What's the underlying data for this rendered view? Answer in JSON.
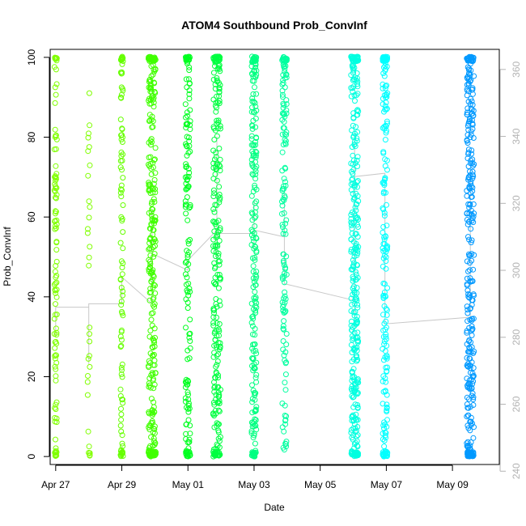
{
  "chart_data": {
    "type": "scatter",
    "title": "ATOM4 Southbound Prob_ConvInf",
    "xlabel": "Date",
    "ylabel": "Prob_ConvInf",
    "xlim": [
      "2015-04-26T20:00",
      "2015-05-10T10:00"
    ],
    "ylim": [
      -2,
      102
    ],
    "x_ticks": [
      {
        "date": "2015-04-27T00:00",
        "label": "Apr 27"
      },
      {
        "date": "2015-04-29T00:00",
        "label": "Apr 29"
      },
      {
        "date": "2015-05-01T00:00",
        "label": "May 01"
      },
      {
        "date": "2015-05-03T00:00",
        "label": "May 03"
      },
      {
        "date": "2015-05-05T00:00",
        "label": "May 05"
      },
      {
        "date": "2015-05-07T00:00",
        "label": "May 07"
      },
      {
        "date": "2015-05-09T00:00",
        "label": "May 09"
      }
    ],
    "y_ticks": [
      0,
      20,
      40,
      60,
      80,
      100
    ],
    "y2_ticks": [
      240,
      260,
      280,
      300,
      320,
      340,
      360
    ],
    "y2_range": [
      242,
      366
    ],
    "y2_color": "#b3b3b3",
    "line_series": {
      "name": "",
      "color": "#c8c8c8",
      "points": [
        [
          "2015-04-27T00:00",
          280
        ],
        [
          "2015-04-27T00:00",
          289
        ],
        [
          "2015-04-28T00:00",
          289
        ],
        [
          "2015-04-28T00:00",
          283
        ],
        [
          "2015-04-28T00:00",
          272
        ],
        [
          "2015-04-28T00:00",
          290
        ],
        [
          "2015-04-29T00:00",
          290
        ],
        [
          "2015-04-29T00:00",
          298
        ],
        [
          "2015-04-29T22:00",
          290
        ],
        [
          "2015-04-29T22:00",
          300
        ],
        [
          "2015-04-29T22:00",
          318
        ],
        [
          "2015-04-29T22:00",
          300
        ],
        [
          "2015-04-29T22:00",
          305
        ],
        [
          "2015-05-01T00:00",
          300
        ],
        [
          "2015-05-01T00:00",
          303
        ],
        [
          "2015-05-01T21:00",
          312
        ],
        [
          "2015-05-01T21:00",
          330
        ],
        [
          "2015-05-01T21:00",
          315
        ],
        [
          "2015-05-01T21:00",
          340
        ],
        [
          "2015-05-01T21:00",
          302
        ],
        [
          "2015-05-01T21:00",
          300
        ],
        [
          "2015-05-01T21:00",
          311
        ],
        [
          "2015-05-03T00:00",
          311
        ],
        [
          "2015-05-03T00:00",
          321
        ],
        [
          "2015-05-03T00:00",
          314
        ],
        [
          "2015-05-03T00:00",
          306
        ],
        [
          "2015-05-03T00:00",
          312
        ],
        [
          "2015-05-03T22:00",
          310
        ],
        [
          "2015-05-03T22:00",
          324
        ],
        [
          "2015-05-03T22:00",
          310
        ],
        [
          "2015-05-03T22:00",
          296
        ],
        [
          "2015-05-06T01:00",
          291
        ],
        [
          "2015-05-06T01:00",
          327
        ],
        [
          "2015-05-06T01:00",
          303
        ],
        [
          "2015-05-06T01:00",
          341
        ],
        [
          "2015-05-06T01:00",
          283
        ],
        [
          "2015-05-06T01:00",
          297
        ],
        [
          "2015-05-06T01:00",
          328
        ],
        [
          "2015-05-06T23:00",
          329
        ],
        [
          "2015-05-06T23:00",
          300
        ],
        [
          "2015-05-06T23:00",
          290
        ],
        [
          "2015-05-06T23:00",
          285
        ],
        [
          "2015-05-06T23:00",
          284
        ],
        [
          "2015-05-09T13:00",
          286
        ],
        [
          "2015-05-09T13:00",
          320
        ],
        [
          "2015-05-09T13:00",
          296
        ],
        [
          "2015-05-09T13:00",
          330
        ],
        [
          "2015-05-09T13:00",
          290
        ]
      ]
    },
    "groups": [
      {
        "date": "2015-04-27T00:00",
        "color": "#80ff00",
        "count": 110,
        "top_pile": 8,
        "bottom_pile": 12
      },
      {
        "date": "2015-04-28T00:00",
        "color": "#80ff00",
        "count": 32,
        "top_pile": 0,
        "bottom_pile": 5
      },
      {
        "date": "2015-04-29T00:00",
        "color": "#66ff00",
        "count": 100,
        "top_pile": 10,
        "bottom_pile": 10
      },
      {
        "date": "2015-04-29T22:00",
        "color": "#40ff00",
        "count": 300,
        "top_pile": 30,
        "bottom_pile": 35
      },
      {
        "date": "2015-05-01T00:00",
        "color": "#00ff20",
        "count": 160,
        "top_pile": 15,
        "bottom_pile": 18
      },
      {
        "date": "2015-05-01T21:00",
        "color": "#00ff40",
        "count": 260,
        "top_pile": 30,
        "bottom_pile": 25
      },
      {
        "date": "2015-05-03T00:00",
        "color": "#00ff80",
        "count": 230,
        "top_pile": 25,
        "bottom_pile": 20
      },
      {
        "date": "2015-05-03T22:00",
        "color": "#00ff9f",
        "count": 150,
        "top_pile": 20,
        "bottom_pile": 0
      },
      {
        "date": "2015-05-06T01:00",
        "color": "#00ffe0",
        "count": 330,
        "top_pile": 35,
        "bottom_pile": 30
      },
      {
        "date": "2015-05-06T23:00",
        "color": "#00ffff",
        "count": 200,
        "top_pile": 25,
        "bottom_pile": 25
      },
      {
        "date": "2015-05-09T13:00",
        "color": "#0099ff",
        "count": 330,
        "top_pile": 25,
        "bottom_pile": 40
      }
    ]
  }
}
